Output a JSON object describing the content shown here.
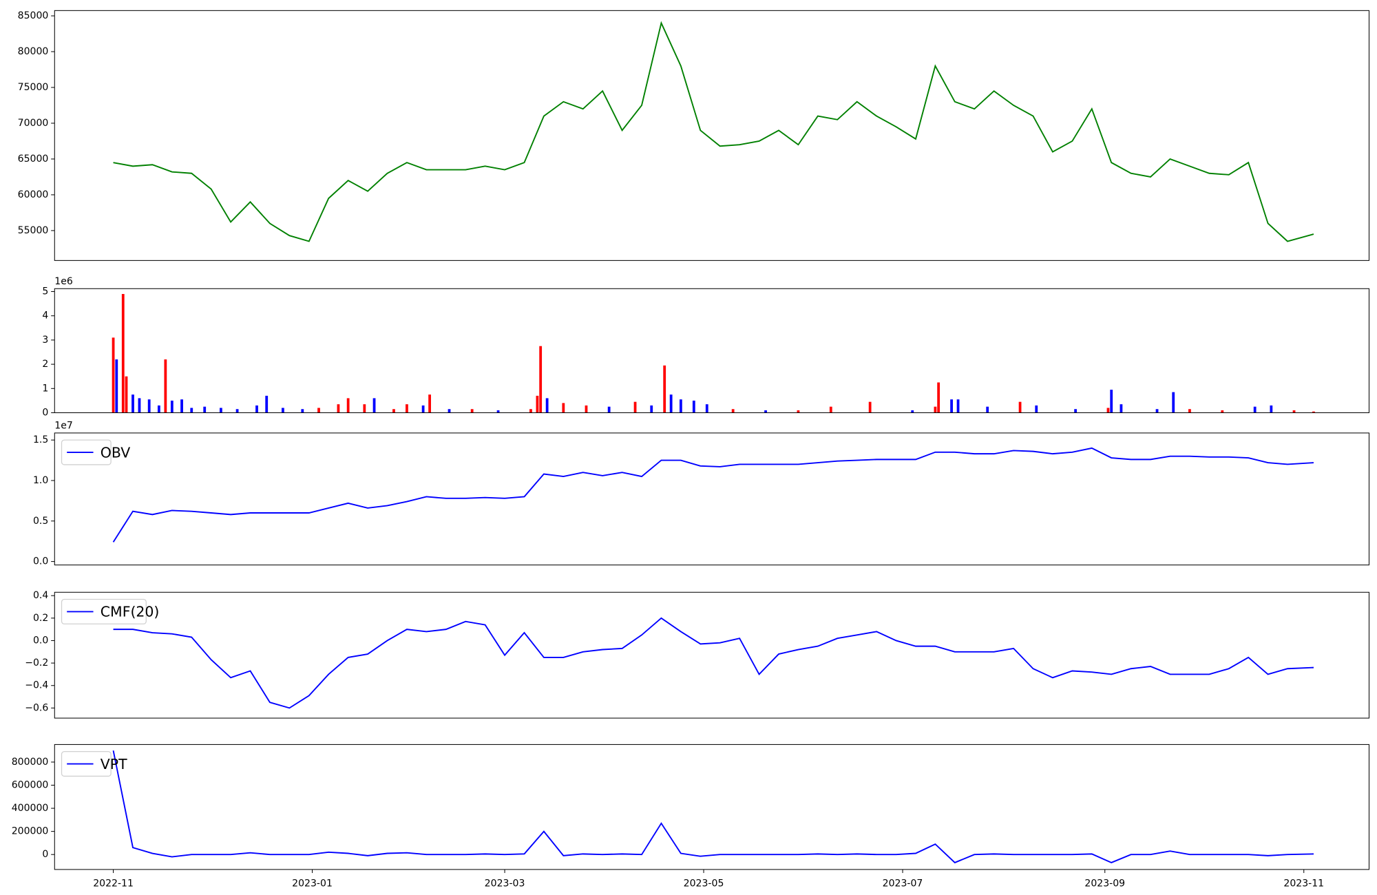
{
  "chart_data": [
    {
      "type": "line",
      "color": "#008000",
      "xlim": [
        -18,
        385
      ],
      "ylim": [
        50820,
        85740
      ],
      "yticks": [
        55000,
        60000,
        65000,
        70000,
        75000,
        80000,
        85000
      ],
      "x": [
        0,
        6,
        12,
        18,
        24,
        30,
        36,
        42,
        48,
        54,
        60,
        66,
        72,
        78,
        84,
        90,
        96,
        102,
        108,
        114,
        120,
        126,
        132,
        138,
        144,
        150,
        156,
        162,
        168,
        174,
        180,
        186,
        192,
        198,
        204,
        210,
        216,
        222,
        228,
        234,
        240,
        246,
        252,
        258,
        264,
        270,
        276,
        282,
        288,
        294,
        300,
        306,
        312,
        318,
        324,
        330,
        336,
        342,
        348,
        354,
        360,
        368
      ],
      "values": [
        64500,
        64000,
        64200,
        63200,
        63000,
        60800,
        56200,
        59000,
        56000,
        54300,
        53500,
        59500,
        62000,
        60500,
        63000,
        64500,
        63500,
        63500,
        63500,
        64000,
        63500,
        64500,
        71000,
        73000,
        72000,
        74500,
        69000,
        72500,
        84000,
        78000,
        69000,
        66800,
        67000,
        67500,
        69000,
        67000,
        71000,
        70500,
        73000,
        71000,
        69500,
        67800,
        78000,
        73000,
        72000,
        74500,
        72500,
        71000,
        66000,
        67500,
        72000,
        64500,
        63000,
        62500,
        65000,
        64000,
        63000,
        62800,
        64500,
        56000,
        53500,
        54500
      ]
    },
    {
      "type": "bar",
      "y_offset_label": "1e6",
      "xlim": [
        -18,
        385
      ],
      "ylim": [
        0,
        5.12
      ],
      "yticks": [
        0,
        1,
        2,
        3,
        4,
        5
      ],
      "x": [
        0,
        1,
        3,
        4,
        6,
        8,
        11,
        14,
        16,
        18,
        21,
        24,
        28,
        33,
        38,
        44,
        47,
        52,
        58,
        63,
        69,
        72,
        77,
        80,
        86,
        90,
        95,
        97,
        103,
        110,
        118,
        128,
        130,
        131,
        133,
        138,
        145,
        152,
        160,
        165,
        169,
        171,
        174,
        178,
        182,
        190,
        200,
        210,
        220,
        232,
        245,
        252,
        253,
        257,
        259,
        268,
        278,
        283,
        295,
        305,
        306,
        309,
        320,
        325,
        330,
        340,
        350,
        355,
        362,
        368
      ],
      "values": [
        3.1,
        2.2,
        4.9,
        1.5,
        0.75,
        0.6,
        0.55,
        0.3,
        2.2,
        0.5,
        0.55,
        0.2,
        0.25,
        0.2,
        0.15,
        0.3,
        0.7,
        0.2,
        0.15,
        0.2,
        0.35,
        0.6,
        0.35,
        0.6,
        0.15,
        0.35,
        0.3,
        0.75,
        0.15,
        0.15,
        0.1,
        0.15,
        0.7,
        2.75,
        0.6,
        0.4,
        0.3,
        0.25,
        0.45,
        0.3,
        1.95,
        0.75,
        0.55,
        0.5,
        0.35,
        0.15,
        0.1,
        0.1,
        0.25,
        0.45,
        0.1,
        0.25,
        1.25,
        0.55,
        0.55,
        0.25,
        0.45,
        0.3,
        0.15,
        0.2,
        0.95,
        0.35,
        0.15,
        0.85,
        0.15,
        0.1,
        0.25,
        0.3,
        0.1,
        0.05
      ],
      "colors": [
        "#ff0000",
        "#0000ff",
        "#ff0000",
        "#ff0000",
        "#0000ff",
        "#0000ff",
        "#0000ff",
        "#0000ff",
        "#ff0000",
        "#0000ff",
        "#0000ff",
        "#0000ff",
        "#0000ff",
        "#0000ff",
        "#0000ff",
        "#0000ff",
        "#0000ff",
        "#0000ff",
        "#0000ff",
        "#ff0000",
        "#ff0000",
        "#ff0000",
        "#ff0000",
        "#0000ff",
        "#ff0000",
        "#ff0000",
        "#0000ff",
        "#ff0000",
        "#0000ff",
        "#ff0000",
        "#0000ff",
        "#ff0000",
        "#ff0000",
        "#ff0000",
        "#0000ff",
        "#ff0000",
        "#ff0000",
        "#0000ff",
        "#ff0000",
        "#0000ff",
        "#ff0000",
        "#0000ff",
        "#0000ff",
        "#0000ff",
        "#0000ff",
        "#ff0000",
        "#0000ff",
        "#ff0000",
        "#ff0000",
        "#ff0000",
        "#0000ff",
        "#ff0000",
        "#ff0000",
        "#0000ff",
        "#0000ff",
        "#0000ff",
        "#ff0000",
        "#0000ff",
        "#0000ff",
        "#ff0000",
        "#0000ff",
        "#0000ff",
        "#0000ff",
        "#0000ff",
        "#ff0000",
        "#ff0000",
        "#0000ff",
        "#0000ff",
        "#ff0000",
        "#ff0000"
      ]
    },
    {
      "type": "line",
      "y_offset_label": "1e7",
      "legend": "upper left",
      "xlim": [
        -18,
        385
      ],
      "ylim": [
        -0.043,
        1.587
      ],
      "yticks": [
        {
          "value": 0,
          "label": "0.0"
        },
        {
          "value": 0.5,
          "label": "0.5"
        },
        {
          "value": 1,
          "label": "1.0"
        },
        {
          "value": 1.5,
          "label": "1.5"
        }
      ],
      "x": [
        0,
        6,
        12,
        18,
        24,
        30,
        36,
        42,
        48,
        54,
        60,
        66,
        72,
        78,
        84,
        90,
        96,
        102,
        108,
        114,
        120,
        126,
        132,
        138,
        144,
        150,
        156,
        162,
        168,
        174,
        180,
        186,
        192,
        198,
        204,
        210,
        216,
        222,
        228,
        234,
        240,
        246,
        252,
        258,
        264,
        270,
        276,
        282,
        288,
        294,
        300,
        306,
        312,
        318,
        324,
        330,
        336,
        342,
        348,
        354,
        360,
        368
      ],
      "series": [
        {
          "name": "OBV",
          "color": "#0000ff",
          "values": [
            0.24,
            0.62,
            0.58,
            0.63,
            0.62,
            0.6,
            0.58,
            0.6,
            0.6,
            0.6,
            0.6,
            0.66,
            0.72,
            0.66,
            0.69,
            0.74,
            0.8,
            0.78,
            0.78,
            0.79,
            0.78,
            0.8,
            1.08,
            1.05,
            1.1,
            1.06,
            1.1,
            1.05,
            1.25,
            1.25,
            1.18,
            1.17,
            1.2,
            1.2,
            1.2,
            1.2,
            1.22,
            1.24,
            1.25,
            1.26,
            1.26,
            1.26,
            1.35,
            1.35,
            1.33,
            1.33,
            1.37,
            1.36,
            1.33,
            1.35,
            1.4,
            1.28,
            1.26,
            1.26,
            1.3,
            1.3,
            1.29,
            1.29,
            1.28,
            1.22,
            1.2,
            1.22
          ]
        }
      ]
    },
    {
      "type": "line",
      "legend": "upper left",
      "xlim": [
        -18,
        385
      ],
      "ylim": [
        -0.69,
        0.43
      ],
      "yticks": [
        {
          "value": -0.6,
          "label": "−0.6"
        },
        {
          "value": -0.4,
          "label": "−0.4"
        },
        {
          "value": -0.2,
          "label": "−0.2"
        },
        {
          "value": 0,
          "label": "0.0"
        },
        {
          "value": 0.2,
          "label": "0.2"
        },
        {
          "value": 0.4,
          "label": "0.4"
        }
      ],
      "x": [
        0,
        6,
        12,
        18,
        24,
        30,
        36,
        42,
        48,
        54,
        60,
        66,
        72,
        78,
        84,
        90,
        96,
        102,
        108,
        114,
        120,
        126,
        132,
        138,
        144,
        150,
        156,
        162,
        168,
        174,
        180,
        186,
        192,
        198,
        204,
        210,
        216,
        222,
        228,
        234,
        240,
        246,
        252,
        258,
        264,
        270,
        276,
        282,
        288,
        294,
        300,
        306,
        312,
        318,
        324,
        330,
        336,
        342,
        348,
        354,
        360,
        368
      ],
      "series": [
        {
          "name": "CMF(20)",
          "color": "#0000ff",
          "values": [
            0.1,
            0.1,
            0.07,
            0.06,
            0.03,
            -0.17,
            -0.33,
            -0.27,
            -0.55,
            -0.6,
            -0.49,
            -0.3,
            -0.15,
            -0.12,
            0,
            0.1,
            0.08,
            0.1,
            0.17,
            0.14,
            -0.13,
            0.07,
            -0.15,
            -0.15,
            -0.1,
            -0.08,
            -0.07,
            0.05,
            0.2,
            0.08,
            -0.03,
            -0.02,
            0.02,
            -0.3,
            -0.12,
            -0.08,
            -0.05,
            0.02,
            0.05,
            0.08,
            0,
            -0.05,
            -0.05,
            -0.1,
            -0.1,
            -0.1,
            -0.07,
            -0.25,
            -0.33,
            -0.27,
            -0.28,
            -0.3,
            -0.25,
            -0.23,
            -0.3,
            -0.3,
            -0.3,
            -0.25,
            -0.15,
            -0.3,
            -0.25,
            -0.24
          ]
        }
      ]
    },
    {
      "type": "line",
      "legend": "upper left",
      "xlim": [
        -18,
        385
      ],
      "ylim": [
        -129500,
        952000
      ],
      "yticks": [
        0,
        200000,
        400000,
        600000,
        800000
      ],
      "xticks": [
        {
          "value": 0,
          "label": "2022-11"
        },
        {
          "value": 61,
          "label": "2023-01"
        },
        {
          "value": 120,
          "label": "2023-03"
        },
        {
          "value": 181,
          "label": "2023-05"
        },
        {
          "value": 242,
          "label": "2023-07"
        },
        {
          "value": 304,
          "label": "2023-09"
        },
        {
          "value": 365,
          "label": "2023-11"
        }
      ],
      "x": [
        0,
        6,
        12,
        18,
        24,
        30,
        36,
        42,
        48,
        54,
        60,
        66,
        72,
        78,
        84,
        90,
        96,
        102,
        108,
        114,
        120,
        126,
        132,
        138,
        144,
        150,
        156,
        162,
        168,
        174,
        180,
        186,
        192,
        198,
        204,
        210,
        216,
        222,
        228,
        234,
        240,
        246,
        252,
        258,
        264,
        270,
        276,
        282,
        288,
        294,
        300,
        306,
        312,
        318,
        324,
        330,
        336,
        342,
        348,
        354,
        360,
        368
      ],
      "series": [
        {
          "name": "VPT",
          "color": "#0000ff",
          "values": [
            900000,
            60000,
            10000,
            -20000,
            0,
            0,
            0,
            15000,
            0,
            0,
            0,
            20000,
            10000,
            -10000,
            10000,
            15000,
            0,
            0,
            0,
            5000,
            0,
            5000,
            200000,
            -10000,
            5000,
            0,
            5000,
            0,
            270000,
            10000,
            -15000,
            0,
            0,
            0,
            0,
            0,
            5000,
            0,
            5000,
            0,
            0,
            10000,
            90000,
            -70000,
            0,
            5000,
            0,
            0,
            0,
            0,
            5000,
            -70000,
            0,
            0,
            30000,
            0,
            0,
            0,
            0,
            -10000,
            0,
            5000
          ]
        }
      ]
    }
  ]
}
